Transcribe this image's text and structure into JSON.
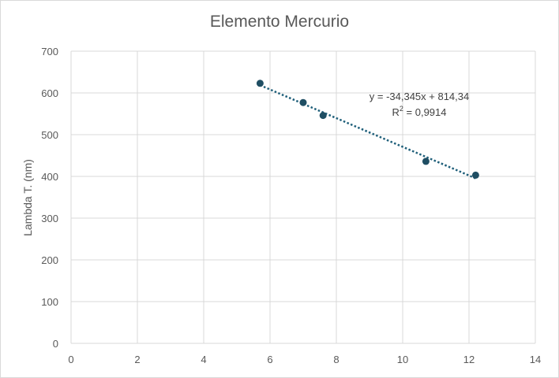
{
  "chart_data": {
    "type": "scatter",
    "title": "Elemento Mercurio",
    "xlabel": "",
    "ylabel": "Lambda T. (nm)",
    "xlim": [
      0,
      14
    ],
    "ylim": [
      0,
      700
    ],
    "xticks": [
      "0",
      "2",
      "4",
      "6",
      "8",
      "10",
      "12",
      "14"
    ],
    "yticks": [
      "0",
      "100",
      "200",
      "300",
      "400",
      "500",
      "600",
      "700"
    ],
    "grid": true,
    "legend": "none",
    "series": [
      {
        "x": [
          5.7,
          7.0,
          7.6,
          10.7,
          12.2
        ],
        "y": [
          623,
          577,
          546,
          436,
          403
        ],
        "color": "#1f4e63"
      }
    ],
    "trendline": {
      "type": "linear",
      "slope": -34.345,
      "intercept": 814.34,
      "x_range": [
        5.7,
        12.2
      ],
      "style": "dotted",
      "color": "#1f5f7a"
    },
    "annotations": {
      "equation": "y = -34,345x + 814,34",
      "r2_prefix": "R",
      "r2_exp": "2",
      "r2_value": " = 0,9914"
    }
  }
}
